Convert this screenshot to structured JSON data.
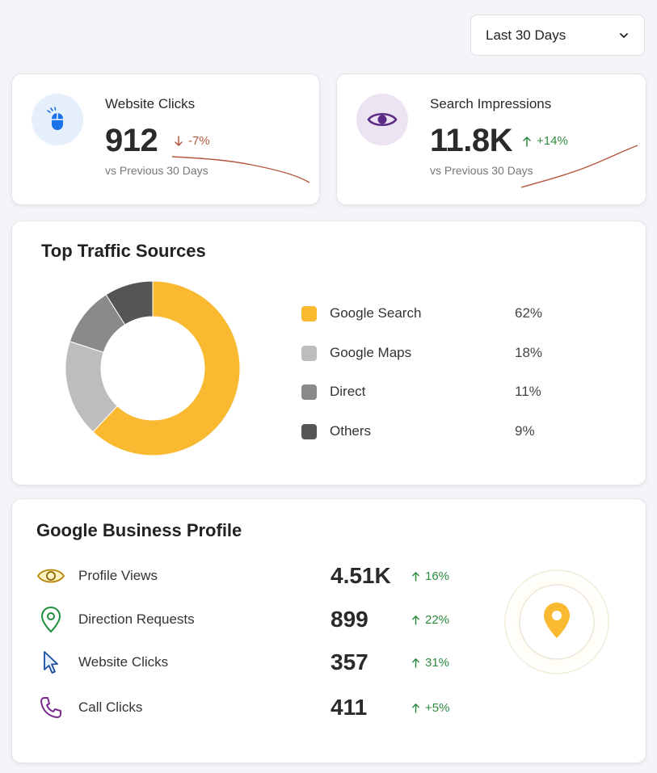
{
  "date_filter": {
    "selected": "Last 30 Days",
    "icon": "chevron-down-icon"
  },
  "stats": [
    {
      "title": "Website Clicks",
      "value": "912",
      "change": "-7%",
      "direction": "down",
      "sub": "vs Previous 30 Days",
      "icon": "mouse-icon",
      "accent": "#1a73e8",
      "trend_color": "#b5573e"
    },
    {
      "title": "Search Impressions",
      "value": "11.8K",
      "change": "+14%",
      "direction": "up",
      "sub": "vs Previous 30 Days",
      "icon": "eye-icon",
      "accent": "#5b2a86",
      "trend_color": "#b5573e"
    }
  ],
  "traffic": {
    "title": "Top Traffic Sources",
    "sources": [
      {
        "label": "Google Search",
        "pct": "62%",
        "color": "#f9b930"
      },
      {
        "label": "Google Maps",
        "pct": "18%",
        "color": "#bdbdbd"
      },
      {
        "label": "Direct",
        "pct": "11%",
        "color": "#8a8a8a"
      },
      {
        "label": "Others",
        "pct": "9%",
        "color": "#555555"
      }
    ]
  },
  "chart_data": {
    "type": "pie",
    "categories": [
      "Google Search",
      "Google Maps",
      "Direct",
      "Others"
    ],
    "values": [
      62,
      18,
      11,
      9
    ],
    "title": "Top Traffic Sources",
    "legend": "right"
  },
  "profile": {
    "title": "Google Business Profile",
    "metrics": [
      {
        "label": "Profile Views",
        "value": "4.51K",
        "change": "16%",
        "icon": "eye-icon"
      },
      {
        "label": "Direction Requests",
        "value": "899",
        "change": "22%",
        "icon": "location-pin-icon"
      },
      {
        "label": "Website Clicks",
        "value": "357",
        "change": "31%",
        "icon": "cursor-icon"
      },
      {
        "label": "Call Clicks",
        "value": "411",
        "change": "+5%",
        "icon": "phone-icon"
      }
    ],
    "pin_icon": "location-pin-icon"
  },
  "colors": {
    "accent_yellow": "#f9b930",
    "positive": "#2e8b3e",
    "negative": "#b5573e"
  }
}
